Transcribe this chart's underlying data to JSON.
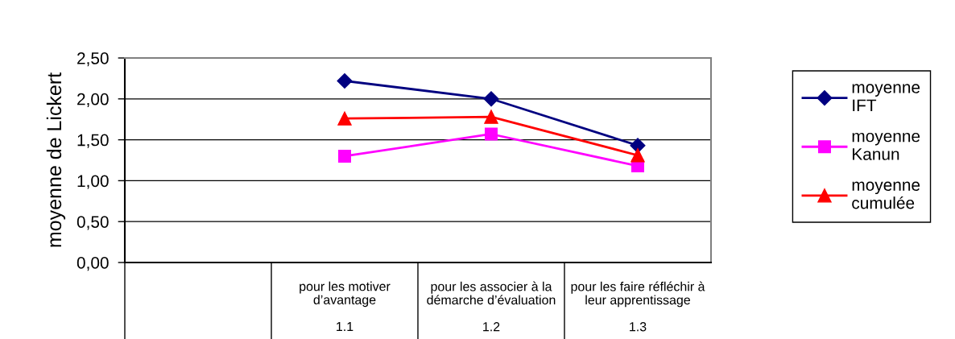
{
  "chart_data": {
    "type": "line",
    "ylabel": "moyenne de Lickert",
    "categories": [
      null,
      "pour les motiver\nd’avantage\n\n1.1",
      "pour les associer à la\ndémarche d’évaluation\n\n1.2",
      "pour les faire réfléchir à\nleur apprentissage\n\n1.3"
    ],
    "series": [
      {
        "name": "moyenne IFT",
        "color": "#000080",
        "marker": "diamond",
        "values": [
          null,
          2.22,
          2.0,
          1.43
        ]
      },
      {
        "name": "moyenne Kanun",
        "color": "#ff00ff",
        "marker": "square",
        "values": [
          null,
          1.3,
          1.57,
          1.18
        ]
      },
      {
        "name": "moyenne cumulée",
        "color": "#ff0000",
        "marker": "triangle",
        "values": [
          null,
          1.76,
          1.78,
          1.31
        ]
      }
    ],
    "ylim": [
      0,
      2.5
    ],
    "yticks": [
      {
        "value": 0,
        "label": "0,00"
      },
      {
        "value": 0.5,
        "label": "0,50"
      },
      {
        "value": 1,
        "label": "1,00"
      },
      {
        "value": 1.5,
        "label": "1,50"
      },
      {
        "value": 2,
        "label": "2,00"
      },
      {
        "value": 2.5,
        "label": "2,50"
      }
    ],
    "grid": "y",
    "legend": "right"
  }
}
